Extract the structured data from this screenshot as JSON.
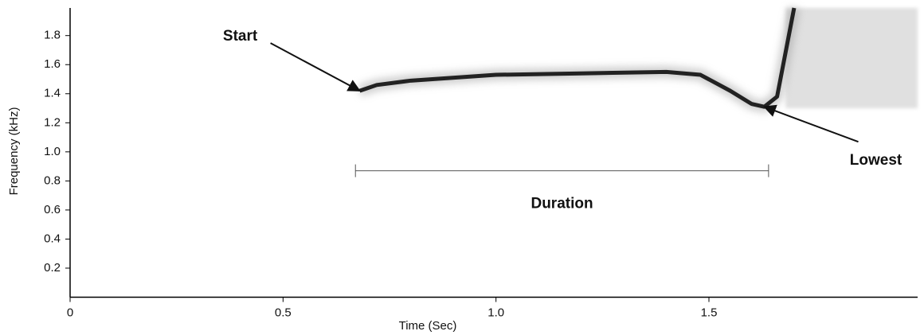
{
  "chart_data": {
    "type": "line",
    "x_label": "Time (Sec)",
    "y_label": "Frequency (kHz)",
    "xlim": [
      0,
      1.99
    ],
    "ylim": [
      0,
      1.99
    ],
    "xticks": [
      0,
      0.5,
      {
        "value": 1,
        "label": "1.0"
      },
      1.5
    ],
    "yticks": [
      0.2,
      0.4,
      0.6,
      0.8,
      {
        "value": 1,
        "label": "1.0"
      },
      1.2,
      1.4,
      1.6,
      1.8
    ],
    "x": [
      0.68,
      0.72,
      0.8,
      1.0,
      1.2,
      1.4,
      1.48,
      1.55,
      1.6,
      1.63,
      1.66,
      1.7
    ],
    "series": [
      {
        "color": "#222222",
        "values": [
          1.42,
          1.46,
          1.49,
          1.53,
          1.54,
          1.55,
          1.53,
          1.42,
          1.33,
          1.31,
          1.38,
          1.99
        ]
      }
    ],
    "annotations": [
      {
        "text": "Start",
        "x": 0.68,
        "y": 1.42
      },
      {
        "text": "Lowest",
        "x": 1.63,
        "y": 1.31
      }
    ],
    "duration": {
      "label": "Duration",
      "start": 0.67,
      "end": 1.64,
      "y": 0.87
    }
  }
}
